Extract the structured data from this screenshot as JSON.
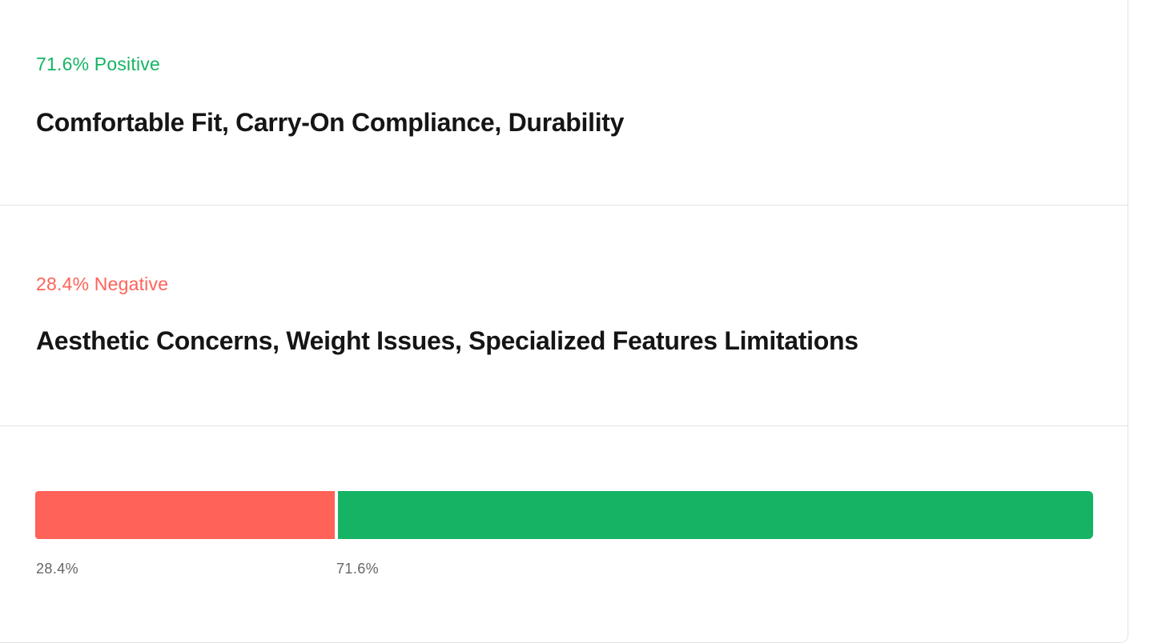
{
  "positive": {
    "label": "71.6% Positive",
    "themes": "Comfortable Fit, Carry-On Compliance, Durability",
    "percent": 71.6,
    "color": "#16b364"
  },
  "negative": {
    "label": "28.4% Negative",
    "themes": "Aesthetic Concerns, Weight Issues, Specialized Features Limitations",
    "percent": 28.4,
    "color": "#ff6259"
  },
  "bar": {
    "negative_value_label": "28.4%",
    "positive_value_label": "71.6%"
  }
}
